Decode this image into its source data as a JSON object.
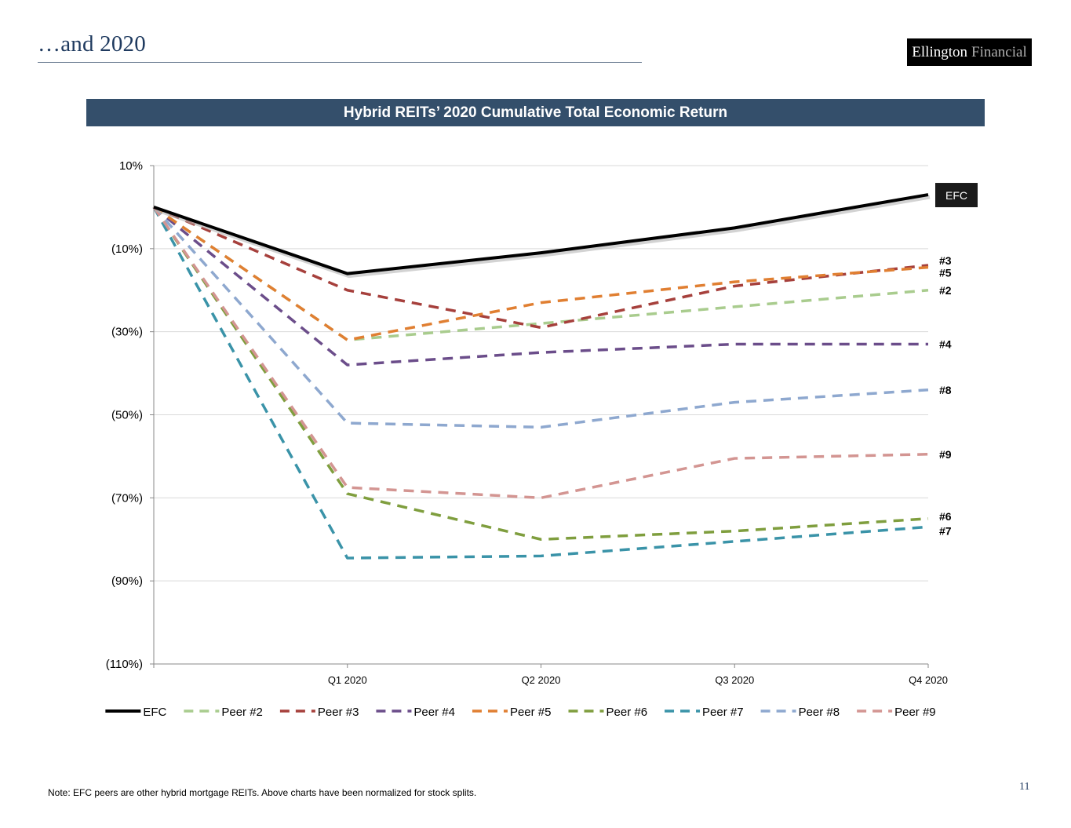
{
  "slide": {
    "title": "…and 2020",
    "logo_primary": "Ellington",
    "logo_secondary": "Financial",
    "footnote": "Note: EFC peers are other hybrid mortgage REITs. Above charts have been normalized for stock splits.",
    "page_number": "11"
  },
  "chart_data": {
    "type": "line",
    "title": "Hybrid REITs’ 2020 Cumulative Total Economic Return",
    "xlabel": "",
    "ylabel": "",
    "x": [
      "",
      "Q1 2020",
      "Q2 2020",
      "Q3 2020",
      "Q4 2020"
    ],
    "tick_labels": [
      "Q1 2020",
      "Q2 2020",
      "Q3 2020",
      "Q4 2020"
    ],
    "ylim": [
      -110,
      10
    ],
    "y_ticks": [
      10,
      -10,
      -30,
      -50,
      -70,
      -90,
      -110
    ],
    "y_tick_labels": [
      "10%",
      "(10%)",
      "(30%)",
      "(50%)",
      "(70%)",
      "(90%)",
      "(110%)"
    ],
    "grid": true,
    "legend_position": "bottom",
    "series": [
      {
        "name": "EFC",
        "end_label": "EFC",
        "color": "#000000",
        "dashed": false,
        "values": [
          0,
          -16,
          -11,
          -5,
          3
        ]
      },
      {
        "name": "Peer #2",
        "end_label": "#2",
        "color": "#a9cc8e",
        "dashed": true,
        "values": [
          0,
          -32,
          -28,
          -24,
          -20
        ]
      },
      {
        "name": "Peer #3",
        "end_label": "#3",
        "color": "#a6403c",
        "dashed": true,
        "values": [
          0,
          -20,
          -29,
          -19,
          -14
        ]
      },
      {
        "name": "Peer #4",
        "end_label": "#4",
        "color": "#6b4d8a",
        "dashed": true,
        "values": [
          0,
          -38,
          -35,
          -33,
          -33
        ]
      },
      {
        "name": "Peer #5",
        "end_label": "#5",
        "color": "#e07f32",
        "dashed": true,
        "values": [
          0,
          -32,
          -23,
          -18,
          -14.5
        ]
      },
      {
        "name": "Peer #6",
        "end_label": "#6",
        "color": "#7f9e3e",
        "dashed": true,
        "values": [
          0,
          -69,
          -80,
          -78,
          -75
        ]
      },
      {
        "name": "Peer #7",
        "end_label": "#7",
        "color": "#3a93a8",
        "dashed": true,
        "values": [
          0,
          -84.5,
          -84,
          -80.5,
          -77
        ]
      },
      {
        "name": "Peer #8",
        "end_label": "#8",
        "color": "#8ea8cf",
        "dashed": true,
        "values": [
          0,
          -52,
          -53,
          -47,
          -44
        ]
      },
      {
        "name": "Peer #9",
        "end_label": "#9",
        "color": "#d39592",
        "dashed": true,
        "values": [
          0,
          -67.5,
          -70,
          -60.5,
          -59.5
        ]
      }
    ]
  }
}
